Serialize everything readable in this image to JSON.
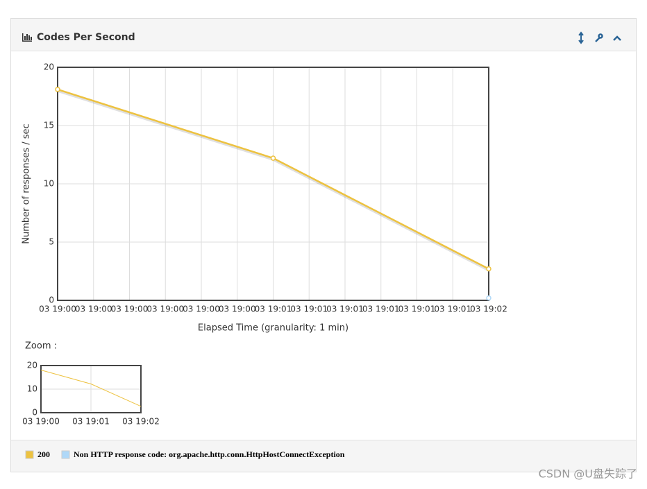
{
  "panel": {
    "title": "Codes Per Second",
    "zoom_label": "Zoom :",
    "watermark": "CSDN @U盘失踪了"
  },
  "chart_data": [
    {
      "type": "line",
      "x_label": "Elapsed Time (granularity: 1 min)",
      "y_label": "Number of responses / sec",
      "xlim": [
        0,
        120
      ],
      "xticks": [
        {
          "value": 0,
          "label": "03 19:00"
        },
        {
          "value": 10,
          "label": "03 19:00"
        },
        {
          "value": 20,
          "label": "03 19:00"
        },
        {
          "value": 30,
          "label": "03 19:00"
        },
        {
          "value": 40,
          "label": "03 19:00"
        },
        {
          "value": 50,
          "label": "03 19:00"
        },
        {
          "value": 60,
          "label": "03 19:01"
        },
        {
          "value": 70,
          "label": "03 19:01"
        },
        {
          "value": 80,
          "label": "03 19:01"
        },
        {
          "value": 90,
          "label": "03 19:01"
        },
        {
          "value": 100,
          "label": "03 19:01"
        },
        {
          "value": 110,
          "label": "03 19:01"
        },
        {
          "value": 120,
          "label": "03 19:02"
        }
      ],
      "ylim": [
        0,
        20
      ],
      "yticks": [
        0,
        5,
        10,
        15,
        20
      ],
      "grid": true,
      "series": [
        {
          "name": "200",
          "color": "#edc240",
          "x": [
            0,
            60,
            120
          ],
          "values": [
            18.1,
            12.2,
            2.7
          ]
        },
        {
          "name": "Non HTTP response code: org.apache.http.conn.HttpHostConnectException",
          "color": "#afd8f8",
          "x": [
            120
          ],
          "values": [
            0.2
          ]
        }
      ]
    },
    {
      "type": "line",
      "xlim": [
        0,
        120
      ],
      "xticks": [
        {
          "value": 0,
          "label": "03 19:00"
        },
        {
          "value": 60,
          "label": "03 19:01"
        },
        {
          "value": 120,
          "label": "03 19:02"
        }
      ],
      "ylim": [
        0,
        20
      ],
      "yticks": [
        0,
        10,
        20
      ],
      "grid": true,
      "series": [
        {
          "name": "200",
          "color": "#edc240",
          "x": [
            0,
            60,
            120
          ],
          "values": [
            18.1,
            12.2,
            2.7
          ]
        }
      ]
    }
  ]
}
